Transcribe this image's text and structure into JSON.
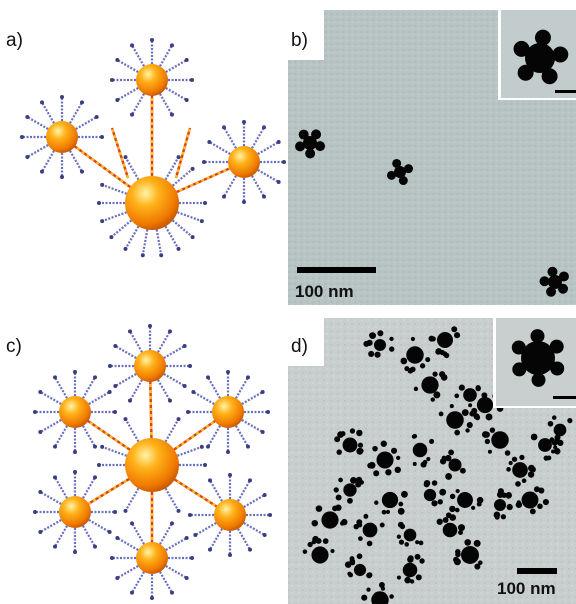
{
  "panels": [
    {
      "label": "a)"
    },
    {
      "label": "b)",
      "scale_bar": "100 nm"
    },
    {
      "label": "c)"
    },
    {
      "label": "d)",
      "scale_bar": "100 nm"
    }
  ]
}
